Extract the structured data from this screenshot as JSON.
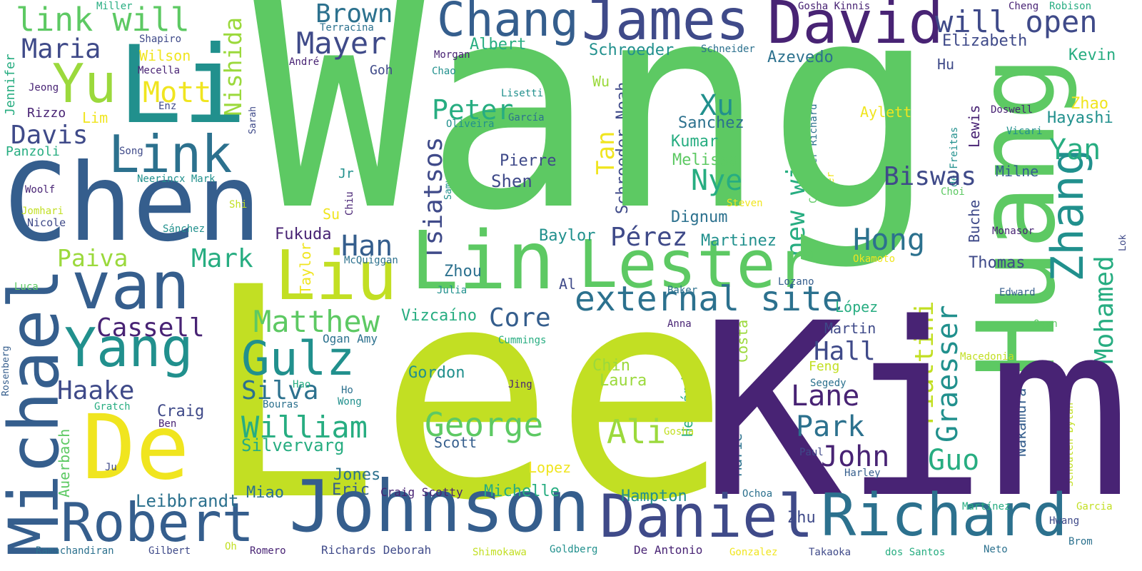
{
  "palette": {
    "purple": "#482374",
    "indigo": "#3f4a89",
    "slate": "#355e8d",
    "blue": "#2c718e",
    "teal": "#21908d",
    "seagreen": "#27ad81",
    "green": "#5dc963",
    "lime": "#9bd93c",
    "yellowgreen": "#c2df23",
    "yellow": "#f0e51f"
  },
  "words": {
    "wang": "Wang",
    "lee": "Lee",
    "kim": "Kim",
    "huang": "Huang",
    "chen": "Chen",
    "li": "Li",
    "de": "De",
    "lin": "Lin",
    "liu": "Liu",
    "lester": "Lester",
    "michael": "Michael",
    "van": "van",
    "johnson": "Johnson",
    "daniel": "Daniel",
    "richard": "Richard",
    "robert": "Robert",
    "david": "David",
    "james": "James",
    "chang": "Chang",
    "zhang": "Zhang",
    "yang": "Yang",
    "yu": "Yu",
    "link": "Link",
    "external_site": "external site",
    "new_window": "new window",
    "link_will": "link will",
    "will_open": "will open",
    "gulz": "Gulz",
    "matthew": "Matthew",
    "george": "George",
    "ali": "Ali",
    "mohamed": "Mohamed",
    "graesser": "Graesser",
    "piattini": "Piattini",
    "william": "William",
    "mayer": "Mayer",
    "peter": "Peter",
    "hong": "Hong",
    "biswas": "Biswas",
    "nishida": "Nishida",
    "tsiatsos": "Tsiatsos",
    "brown": "Brown",
    "maria": "Maria",
    "davis": "Davis",
    "mott": "Mott",
    "xu": "Xu",
    "nye": "Nye",
    "yan": "Yan",
    "tan": "Tan",
    "perez": "Pérez",
    "han": "Han",
    "mark_big": "Mark",
    "cassell": "Cassell",
    "core": "Core",
    "lane": "Lane",
    "park": "Park",
    "john": "John",
    "hall": "Hall",
    "guo": "Guo",
    "silva": "Silva",
    "haake": "Haake",
    "paiva": "Paiva",
    "schroeder_noah": "Schroeder Noah",
    "silvervarg": "Silvervarg",
    "leibbrandt": "Leibbrandt",
    "gordon": "Gordon",
    "chin": "Chin",
    "laura": "Laura",
    "azevedo": "Azevedo",
    "elizabeth": "Elizabeth",
    "schroeder": "Schroeder",
    "albert": "Albert",
    "sanchez": "Sanchez",
    "kumar": "Kumar",
    "melissa": "Melissa",
    "dignum": "Dignum",
    "fukuda": "Fukuda",
    "baylor": "Baylor",
    "martinez": "Martinez",
    "zhou": "Zhou",
    "vizcaino": "Vizcaíno",
    "michelle": "Michelle",
    "jones": "Jones",
    "eric": "Eric",
    "miao": "Miao",
    "hampton": "Hampton",
    "zhu": "Zhu",
    "shen": "Shen",
    "pierre": "Pierre",
    "thomas": "Thomas",
    "martin": "Martin",
    "lopez_acc": "López",
    "lewis": "Lewis",
    "hu": "Hu",
    "kevin": "Kevin",
    "zhao": "Zhao",
    "hayashi": "Hayashi",
    "milne": "Milne",
    "aylett": "Aylett",
    "auerbach": "Auerbach",
    "hernandez": "Hernández",
    "costa": "Costa",
    "marie": "Marie",
    "nakamura": "Nakamura",
    "buche": "Buche",
    "craig": "Craig",
    "wu": "Wu",
    "goh": "Goh",
    "mecella": "Mecella",
    "rizzo": "Rizzo",
    "panzoli": "Panzoli",
    "jennifer": "Jennifer",
    "lim": "Lim",
    "wilson": "Wilson",
    "enz": "Enz",
    "jeong": "Jeong",
    "shapiro": "Shapiro",
    "miller": "Miller",
    "terracina": "Terracina",
    "morgan": "Morgan",
    "andre": "André",
    "chao": "Chao",
    "lisetti": "Lisetti",
    "garcia_acc": "García",
    "oliveira": "Oliveira",
    "sarah": "Sarah",
    "song": "Song",
    "neerincx_mark": "Neerincx Mark",
    "woolf": "Woolf",
    "jomhari": "Jomhari",
    "shi": "Shi",
    "nicole": "Nicole",
    "sanchez_acc": "Sánchez",
    "su": "Su",
    "jr": "Jr",
    "chiu": "Chiu",
    "samuel": "Samuel",
    "taylor": "Taylor",
    "mcquiggan": "McQuiggan",
    "julia": "Julia",
    "al": "Al",
    "ogan_amy": "Ogan Amy",
    "cummings": "Cummings",
    "jing": "Jing",
    "ho": "Ho",
    "wong": "Wong",
    "hao": "Hao",
    "bouras": "Bouras",
    "ben": "Ben",
    "gratch": "Gratch",
    "rosenberg": "Rosenberg",
    "luca": "Luca",
    "ju": "Ju",
    "scott": "Scott",
    "lopez": "Lopez",
    "craig_scotty": "Craig Scotty",
    "gosha_kinnis": "Gosha Kinnis",
    "cheng": "Cheng",
    "robison": "Robison",
    "schneider": "Schneider",
    "mayer_richard": "Mayer Richard",
    "de_freitas": "de Freitas",
    "doswell": "Doswell",
    "vicari": "Vicari",
    "cai": "Cai",
    "power": "Power",
    "steven": "Steven",
    "choi": "Choi",
    "monasor": "Monasor",
    "lok": "Lok",
    "okamoto": "Okamoto",
    "lozano": "Lozano",
    "baker": "Baker",
    "edward": "Edward",
    "anna": "Anna",
    "ogan": "Ogan",
    "macedonia": "Macedonia",
    "feng": "Feng",
    "segedy": "Segedy",
    "schouten_dylan": "Schouten Dylan",
    "gosha": "Gosha",
    "paul": "Paul",
    "harley": "Harley",
    "ochoa": "Ochoa",
    "martinez_acc": "Martínez",
    "garcia": "Garcia",
    "hwang": "Hwang",
    "brom": "Brom",
    "neto": "Neto",
    "dos_santos": "dos Santos",
    "takaoka": "Takaoka",
    "gonzalez": "Gonzalez",
    "de_antonio": "De Antonio",
    "goldberg": "Goldberg",
    "shimokawa": "Shimokawa",
    "richards_deborah": "Richards Deborah",
    "romero": "Romero",
    "oh": "Oh",
    "gilbert": "Gilbert",
    "ramachandiran": "Ramachandiran"
  }
}
